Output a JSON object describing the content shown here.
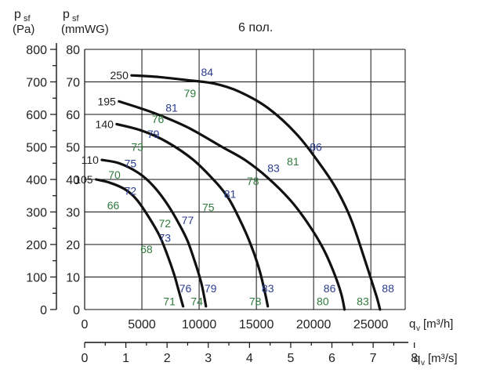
{
  "chart_data": {
    "type": "line",
    "title": "6 пол.",
    "y_axis_pa": {
      "label_main": "p",
      "label_sub": "sf",
      "unit": "(Pa)",
      "range": [
        0,
        800
      ],
      "ticks": [
        "0",
        "100",
        "200",
        "300",
        "400",
        "500",
        "600",
        "700",
        "800"
      ]
    },
    "y_axis_mmwg": {
      "label_main": "p",
      "label_sub": "sf",
      "unit": "(mmWG)",
      "range": [
        0,
        80
      ],
      "ticks": [
        "0",
        "10",
        "20",
        "30",
        "40",
        "50",
        "60",
        "70",
        "80"
      ]
    },
    "x_axis_m3h": {
      "label_main": "q",
      "label_sub": "v",
      "unit": "[m³/h]",
      "range": [
        0,
        28000
      ],
      "ticks": [
        "0",
        "5000",
        "10000",
        "15000",
        "20000",
        "25000"
      ],
      "tick_values": [
        0,
        5000,
        10000,
        15000,
        20000,
        25000
      ]
    },
    "x_axis_m3s": {
      "label_main": "q",
      "label_sub": "v",
      "unit": "[m³/s]",
      "range": [
        0,
        8
      ],
      "ticks": [
        "0",
        "1",
        "2",
        "3",
        "4",
        "5",
        "6",
        "7",
        "8"
      ],
      "tick_values": [
        0,
        1,
        2,
        3,
        4,
        5,
        6,
        7,
        8
      ]
    },
    "grid": true,
    "series": [
      {
        "name": "250",
        "points": [
          [
            4100,
            72
          ],
          [
            6500,
            71.5
          ],
          [
            9000,
            70.5
          ],
          [
            11300,
            69.5
          ],
          [
            13500,
            67
          ],
          [
            16000,
            62
          ],
          [
            18500,
            54
          ],
          [
            20500,
            45
          ],
          [
            22000,
            37
          ],
          [
            23300,
            27.5
          ],
          [
            24500,
            15
          ],
          [
            25500,
            4
          ],
          [
            25800,
            0
          ]
        ],
        "efficiency_labels": [
          {
            "text": "84",
            "x": 10700,
            "y": 73,
            "color": "blue"
          },
          {
            "text": "79",
            "x": 9200,
            "y": 66.5,
            "color": "green"
          },
          {
            "text": "86",
            "x": 20200,
            "y": 50,
            "color": "blue"
          },
          {
            "text": "88",
            "x": 26500,
            "y": 6.5,
            "color": "blue"
          },
          {
            "text": "83",
            "x": 24300,
            "y": 2.5,
            "color": "green"
          }
        ]
      },
      {
        "name": "195",
        "points": [
          [
            3000,
            64
          ],
          [
            6000,
            60.5
          ],
          [
            9000,
            56
          ],
          [
            12000,
            50
          ],
          [
            14000,
            46
          ],
          [
            16000,
            40.5
          ],
          [
            18000,
            33.5
          ],
          [
            19500,
            26.5
          ],
          [
            20800,
            19
          ],
          [
            21700,
            12
          ],
          [
            22400,
            5
          ],
          [
            22700,
            0
          ]
        ],
        "efficiency_labels": [
          {
            "text": "81",
            "x": 7600,
            "y": 62,
            "color": "blue"
          },
          {
            "text": "83",
            "x": 16500,
            "y": 43.5,
            "color": "blue"
          },
          {
            "text": "81",
            "x": 18200,
            "y": 45.5,
            "color": "green"
          },
          {
            "text": "86",
            "x": 21400,
            "y": 6.5,
            "color": "blue"
          },
          {
            "text": "80",
            "x": 20800,
            "y": 2.5,
            "color": "green"
          }
        ]
      },
      {
        "name": "140",
        "points": [
          [
            2800,
            57
          ],
          [
            5000,
            55
          ],
          [
            7200,
            51.5
          ],
          [
            9500,
            46
          ],
          [
            11500,
            39
          ],
          [
            12600,
            34
          ],
          [
            13500,
            28
          ],
          [
            14400,
            21
          ],
          [
            15200,
            13
          ],
          [
            15700,
            6
          ],
          [
            16000,
            1
          ]
        ],
        "efficiency_labels": [
          {
            "text": "76",
            "x": 6400,
            "y": 58.5,
            "color": "green"
          },
          {
            "text": "79",
            "x": 6000,
            "y": 54,
            "color": "blue"
          },
          {
            "text": "78",
            "x": 14700,
            "y": 39.5,
            "color": "green"
          },
          {
            "text": "81",
            "x": 12700,
            "y": 35.5,
            "color": "blue"
          },
          {
            "text": "83",
            "x": 16000,
            "y": 6.5,
            "color": "blue"
          },
          {
            "text": "78",
            "x": 14900,
            "y": 2.5,
            "color": "green"
          }
        ]
      },
      {
        "name": "110",
        "points": [
          [
            1500,
            46
          ],
          [
            3000,
            45
          ],
          [
            4700,
            42
          ],
          [
            6000,
            38
          ],
          [
            7200,
            32.5
          ],
          [
            8300,
            26
          ],
          [
            9000,
            21
          ],
          [
            9600,
            15
          ],
          [
            10200,
            8
          ],
          [
            10600,
            1
          ]
        ],
        "efficiency_labels": [
          {
            "text": "73",
            "x": 4600,
            "y": 50,
            "color": "green"
          },
          {
            "text": "75",
            "x": 4000,
            "y": 45,
            "color": "blue"
          },
          {
            "text": "75",
            "x": 10800,
            "y": 31.5,
            "color": "green"
          },
          {
            "text": "79",
            "x": 11000,
            "y": 6.5,
            "color": "blue"
          },
          {
            "text": "74",
            "x": 9800,
            "y": 2.5,
            "color": "green"
          }
        ]
      },
      {
        "name": "105",
        "points": [
          [
            1000,
            40
          ],
          [
            2200,
            39
          ],
          [
            3500,
            37
          ],
          [
            4500,
            34
          ],
          [
            5500,
            29
          ],
          [
            6500,
            23
          ],
          [
            7200,
            17
          ],
          [
            7800,
            11
          ],
          [
            8200,
            6
          ],
          [
            8600,
            1
          ]
        ],
        "efficiency_labels": [
          {
            "text": "70",
            "x": 2600,
            "y": 41.5,
            "color": "green"
          },
          {
            "text": "72",
            "x": 4000,
            "y": 36.5,
            "color": "blue"
          },
          {
            "text": "66",
            "x": 2500,
            "y": 32,
            "color": "green"
          },
          {
            "text": "77",
            "x": 9000,
            "y": 27.5,
            "color": "blue"
          },
          {
            "text": "72",
            "x": 7000,
            "y": 26.5,
            "color": "green"
          },
          {
            "text": "73",
            "x": 7000,
            "y": 22,
            "color": "blue"
          },
          {
            "text": "68",
            "x": 5400,
            "y": 18.5,
            "color": "green"
          },
          {
            "text": "76",
            "x": 8800,
            "y": 6.5,
            "color": "blue"
          },
          {
            "text": "71",
            "x": 7400,
            "y": 2.5,
            "color": "green"
          }
        ]
      }
    ],
    "colors": {
      "curve": "#111111",
      "grid": "#111111",
      "blue_label": "#2a3d8f",
      "green_label": "#2e7a3c",
      "text": "#222222"
    }
  }
}
